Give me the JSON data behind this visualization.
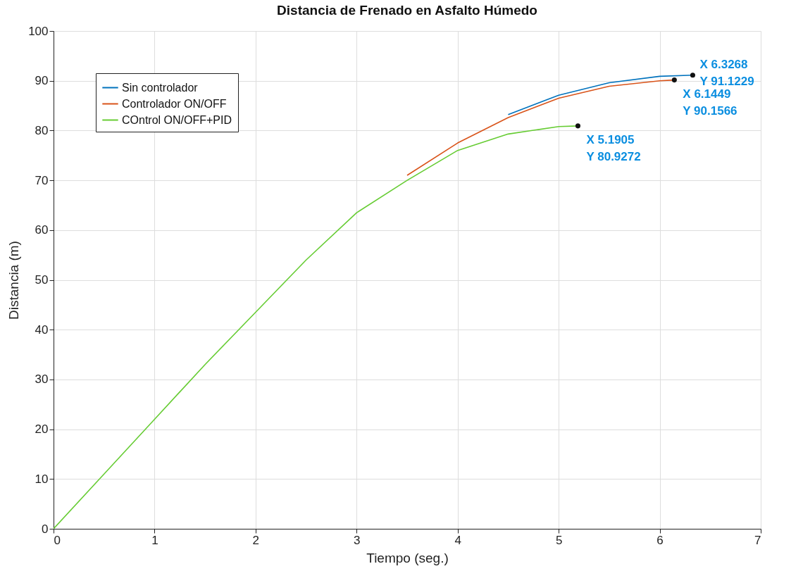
{
  "chart_data": {
    "type": "line",
    "title": "Distancia de Frenado en Asfalto Húmedo",
    "xlabel": "Tiempo (seg.)",
    "ylabel": "Distancia (m)",
    "xlim": [
      0,
      7
    ],
    "xticks": [
      0,
      1,
      2,
      3,
      4,
      5,
      6,
      7
    ],
    "ylim": [
      0,
      100
    ],
    "yticks": [
      0,
      10,
      20,
      30,
      40,
      50,
      60,
      70,
      80,
      90,
      100
    ],
    "grid": true,
    "legend": "top left",
    "series": [
      {
        "name": "Sin controlador",
        "color": "#0072bd",
        "x": [
          4.5,
          5,
          5.5,
          6,
          6.3268
        ],
        "values": [
          83.2,
          87.1,
          89.6,
          90.9,
          91.1229
        ]
      },
      {
        "name": "Controlador ON/OFF",
        "color": "#d95319",
        "x": [
          3.5,
          4,
          4.5,
          5,
          5.5,
          6,
          6.1449
        ],
        "values": [
          71,
          77.5,
          82.6,
          86.5,
          88.9,
          90,
          90.1566
        ]
      },
      {
        "name": "COntrol ON/OFF+PID",
        "color": "#66cc33",
        "x": [
          0,
          0.5,
          1,
          1.5,
          2,
          2.5,
          3,
          3.5,
          4,
          4.5,
          5,
          5.1905
        ],
        "values": [
          0,
          11,
          22,
          33,
          43.5,
          54,
          63.5,
          70,
          76,
          79.3,
          80.8,
          80.9272
        ]
      }
    ],
    "annotations": [
      {
        "text": "X 6.3268\nY 91.1229",
        "x": 6.3268,
        "y": 91.1229
      },
      {
        "text": "X 6.1449\nY 90.1566",
        "x": 6.1449,
        "y": 90.1566
      },
      {
        "text": "X 5.1905\nY 80.9272",
        "x": 5.1905,
        "y": 80.9272
      }
    ]
  }
}
